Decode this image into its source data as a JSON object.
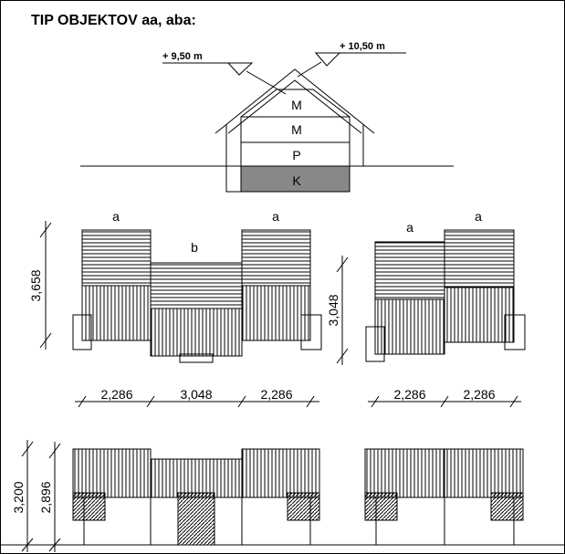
{
  "title": "TIP OBJEKTOV aa, aba:",
  "section": {
    "levels": [
      "+ 9,50 m",
      "+ 10,50 m"
    ],
    "floors": [
      "M",
      "M",
      "P",
      "K"
    ]
  },
  "plans": {
    "labels": [
      "a",
      "b",
      "a",
      "a",
      "a"
    ],
    "dimensions": [
      "3,658",
      "3,048"
    ],
    "widths": [
      "2,286",
      "3,048",
      "2,286",
      "2,286",
      "2,286"
    ]
  },
  "elevations": {
    "dimensions": [
      "3,200",
      "2,896"
    ]
  }
}
